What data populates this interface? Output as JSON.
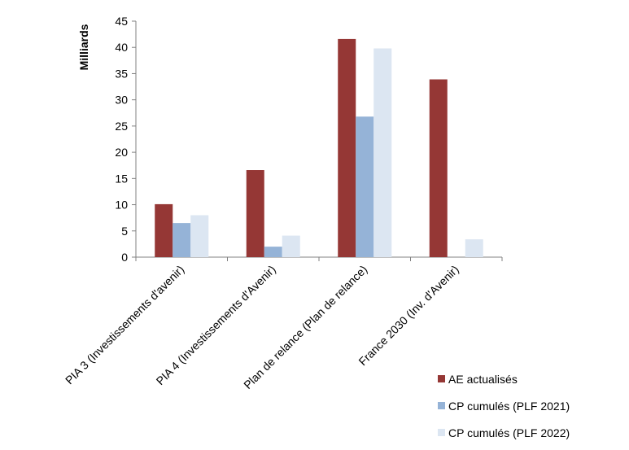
{
  "chart_data": {
    "type": "bar",
    "ylabel": "Milliards",
    "xlabel": "",
    "title": "",
    "ylim": [
      0,
      45
    ],
    "yticks": [
      0,
      5,
      10,
      15,
      20,
      25,
      30,
      35,
      40,
      45
    ],
    "grid": false,
    "legend_position": "bottom-right",
    "categories": [
      "PIA 3 (Investissements d'avenir)",
      "PIA 4 (Investissements d'Avenir)",
      "Plan de relance (Plan de relance)",
      "France 2030 (Inv. d'Avenir)"
    ],
    "series": [
      {
        "name": "AE actualisés",
        "color": "#953735",
        "values": [
          10.1,
          16.6,
          41.6,
          33.9
        ]
      },
      {
        "name": "CP cumulés (PLF 2021)",
        "color": "#95B3D7",
        "values": [
          6.5,
          2.0,
          26.8,
          0
        ]
      },
      {
        "name": "CP cumulés (PLF 2022)",
        "color": "#DCE6F2",
        "values": [
          8.0,
          4.1,
          39.8,
          3.4
        ]
      }
    ]
  }
}
